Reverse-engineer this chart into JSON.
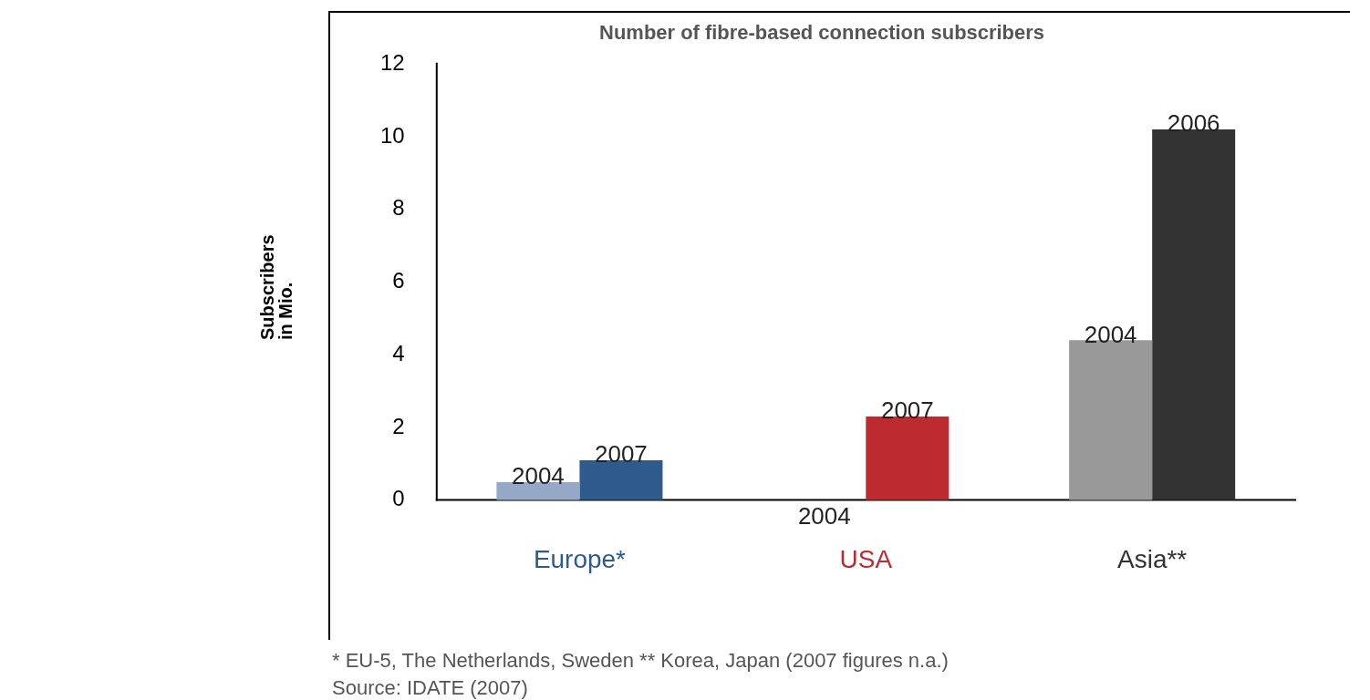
{
  "chart_data": {
    "type": "bar",
    "title": "Number of fibre-based connection subscribers",
    "ylabel": "Subscribers in Mio.",
    "categories": [
      "Europe*",
      "USA",
      "Asia**"
    ],
    "series": [
      {
        "colors": [
          "#95a9c6",
          "#e8a0a4",
          "#999999"
        ],
        "values": [
          0.5,
          0,
          4.4
        ]
      },
      {
        "colors": [
          "#2e5a8c",
          "#bd2b31",
          "#333333"
        ],
        "values": [
          1.1,
          2.3,
          10.2
        ]
      }
    ],
    "ylim": [
      0,
      12
    ],
    "yticks": [
      0,
      2,
      4,
      6,
      8,
      10,
      12
    ],
    "grid": false,
    "legend": false,
    "annotations": [
      {
        "text": "2004",
        "x": "Europe*",
        "y": 0.5
      },
      {
        "text": "2007",
        "x": "Europe*",
        "y": 1.1
      },
      {
        "text": "2004",
        "x": "USA",
        "y": 0
      },
      {
        "text": "2007",
        "x": "USA",
        "y": 2.3
      },
      {
        "text": "2004",
        "x": "Asia**",
        "y": 4.4
      },
      {
        "text": "2006",
        "x": "Asia**",
        "y": 10.2
      },
      "* EU-5, The Netherlands, Sweden  ** Korea, Japan (2007 figures n.a.)",
      "Source: IDATE (2007)"
    ]
  }
}
